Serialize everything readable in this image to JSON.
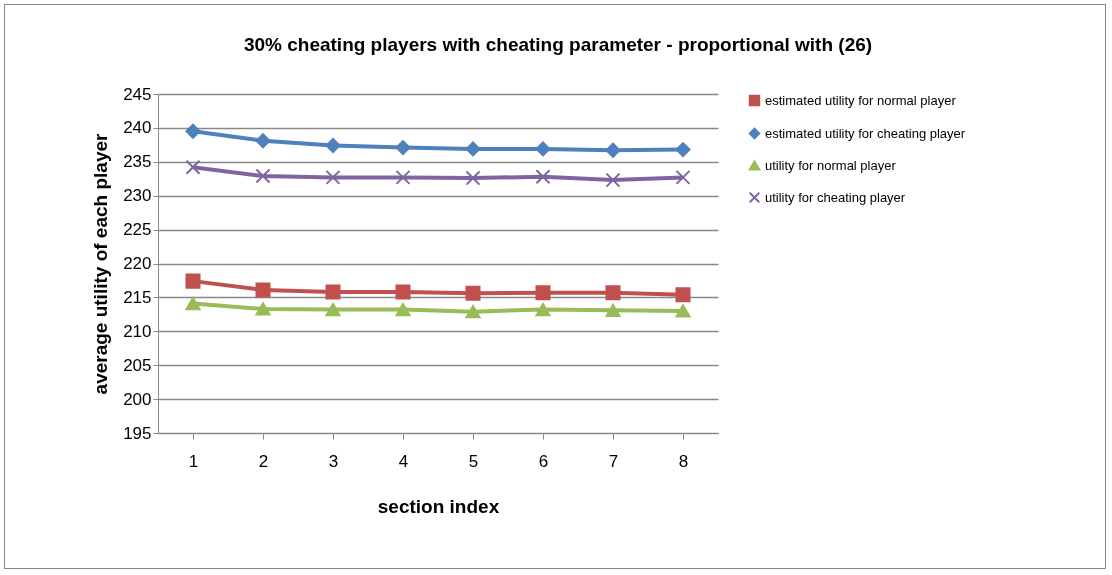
{
  "chart_data": {
    "type": "line",
    "title": "30% cheating players  with cheating parameter - proportional with (26)",
    "xlabel": "section index",
    "ylabel": "average utility of each player",
    "categories": [
      "1",
      "2",
      "3",
      "4",
      "5",
      "6",
      "7",
      "8"
    ],
    "ylim": [
      195,
      245
    ],
    "yticks": [
      195,
      200,
      205,
      210,
      215,
      220,
      225,
      230,
      235,
      240,
      245
    ],
    "grid": "y",
    "legend": "right",
    "series": [
      {
        "name": "estimated utility for normal player",
        "color": "#c0504d",
        "marker": "square",
        "values": [
          217.4,
          216.1,
          215.8,
          215.8,
          215.6,
          215.7,
          215.7,
          215.4
        ]
      },
      {
        "name": "estimated utility for cheating player",
        "color": "#4f81bd",
        "marker": "diamond",
        "values": [
          239.5,
          238.1,
          237.4,
          237.1,
          236.9,
          236.9,
          236.7,
          236.8
        ]
      },
      {
        "name": "utility for normal player",
        "color": "#9bbb59",
        "marker": "triangle",
        "values": [
          214.1,
          213.3,
          213.2,
          213.2,
          212.9,
          213.2,
          213.1,
          213.0
        ]
      },
      {
        "name": "utility for cheating player",
        "color": "#8064a2",
        "marker": "cross",
        "values": [
          234.2,
          232.9,
          232.7,
          232.7,
          232.6,
          232.8,
          232.3,
          232.7
        ]
      }
    ]
  }
}
